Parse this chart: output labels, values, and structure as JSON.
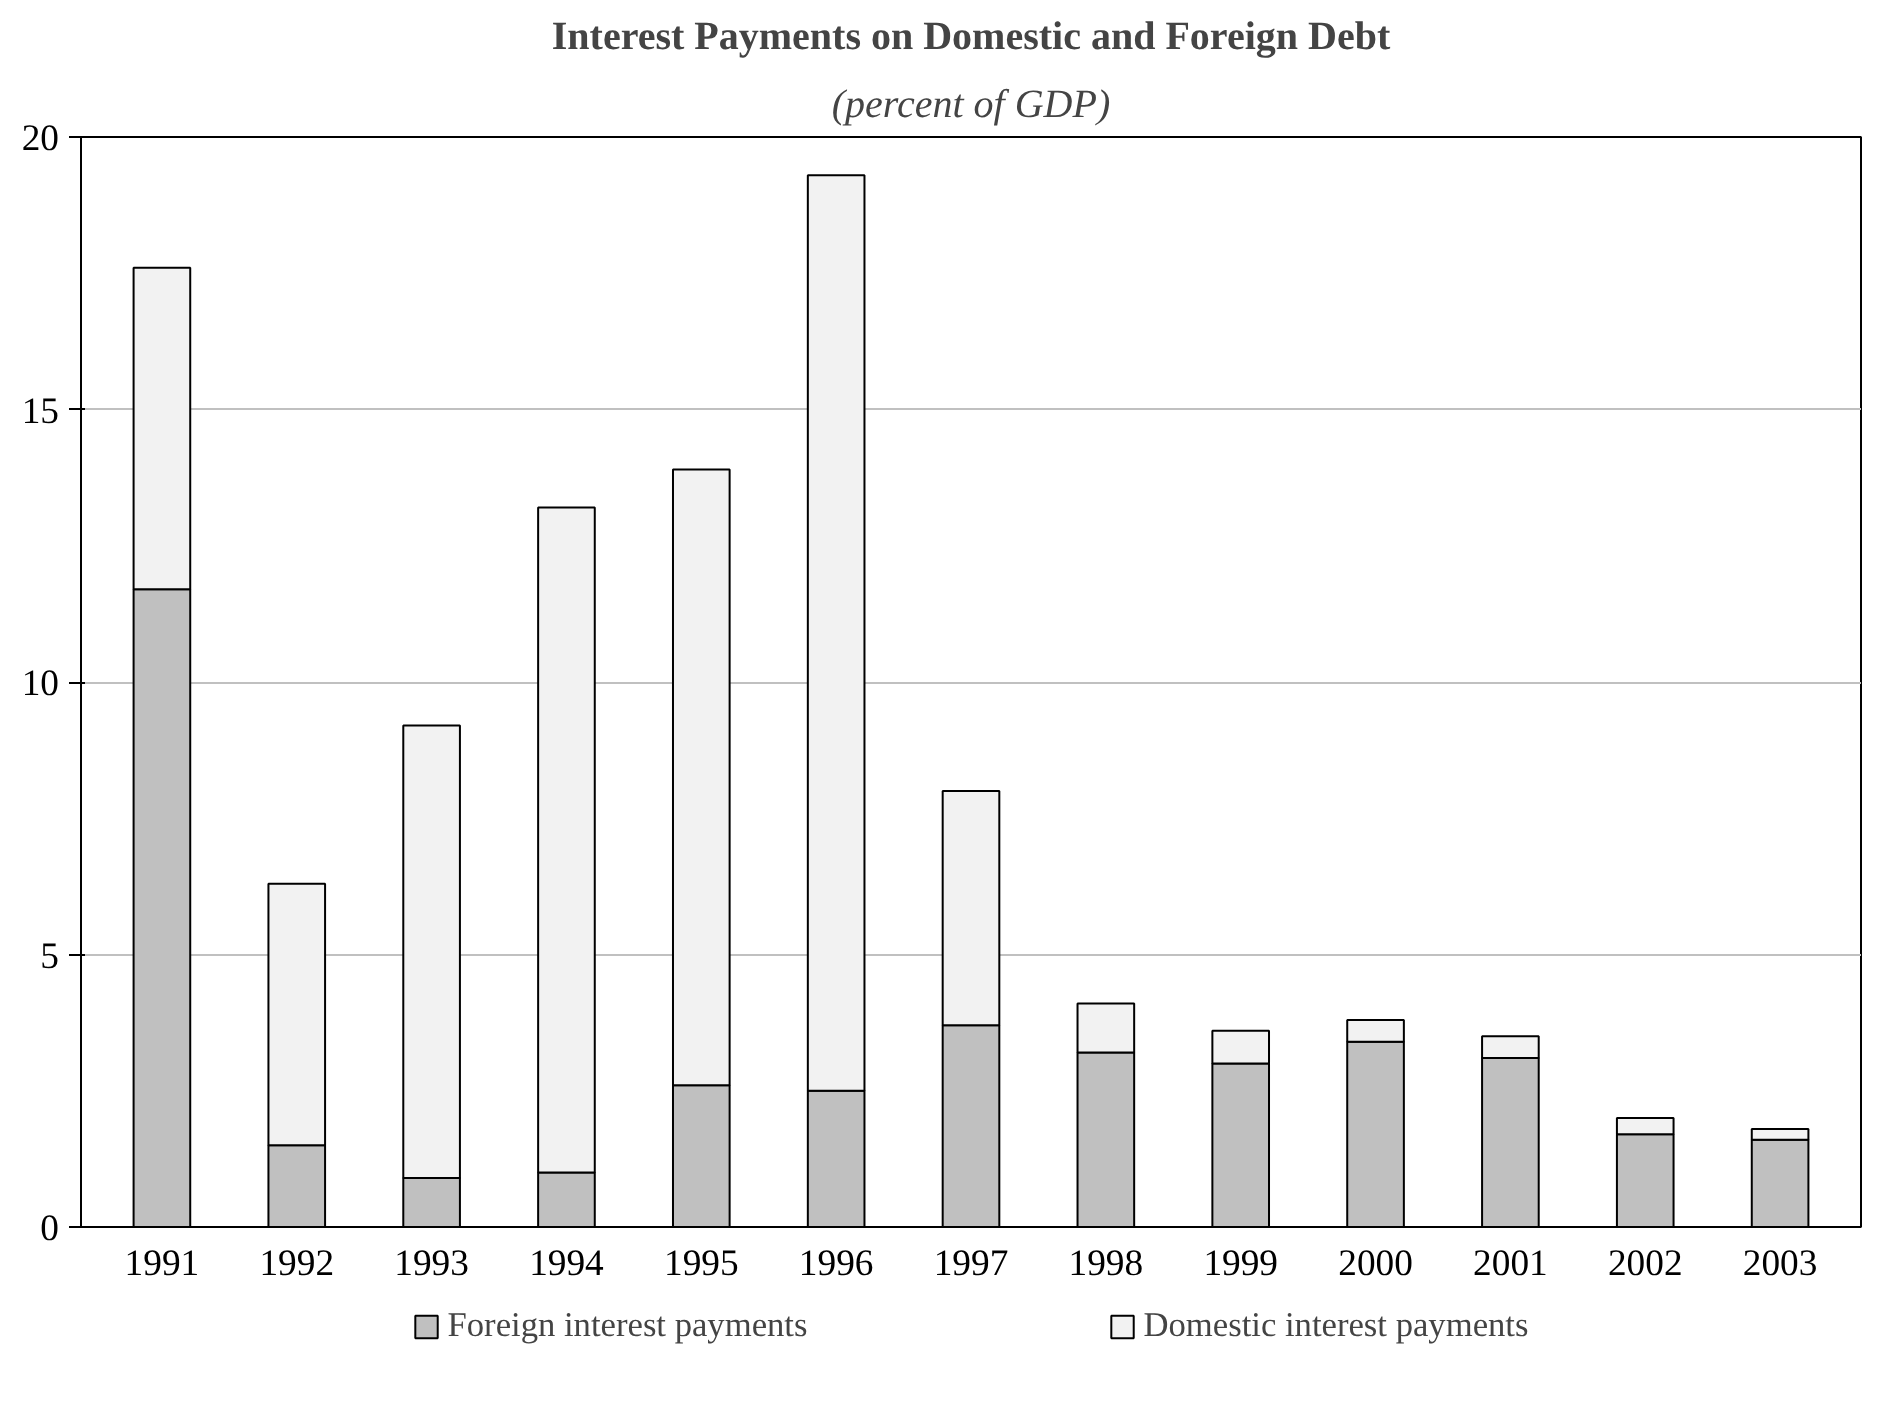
{
  "chart_data": {
    "type": "bar",
    "title": "Interest Payments on Domestic and Foreign Debt",
    "subtitle": "(percent of GDP)",
    "categories": [
      "1991",
      "1992",
      "1993",
      "1994",
      "1995",
      "1996",
      "1997",
      "1998",
      "1999",
      "2000",
      "2001",
      "2002",
      "2003"
    ],
    "stacked": true,
    "series": [
      {
        "name": "Foreign interest payments",
        "color": "#c0c0c0",
        "values": [
          11.7,
          1.5,
          0.9,
          1.0,
          2.6,
          2.5,
          3.7,
          3.2,
          3.0,
          3.4,
          3.1,
          1.7,
          1.6
        ]
      },
      {
        "name": "Domestic interest payments",
        "color": "#f2f2f2",
        "values": [
          5.9,
          4.8,
          8.3,
          12.2,
          11.3,
          16.8,
          4.3,
          0.9,
          0.6,
          0.4,
          0.4,
          0.3,
          0.2
        ]
      }
    ],
    "ylim": [
      0,
      20
    ],
    "yticks": [
      0,
      5,
      10,
      15,
      20
    ],
    "grid": "y",
    "legend": "bottom"
  }
}
